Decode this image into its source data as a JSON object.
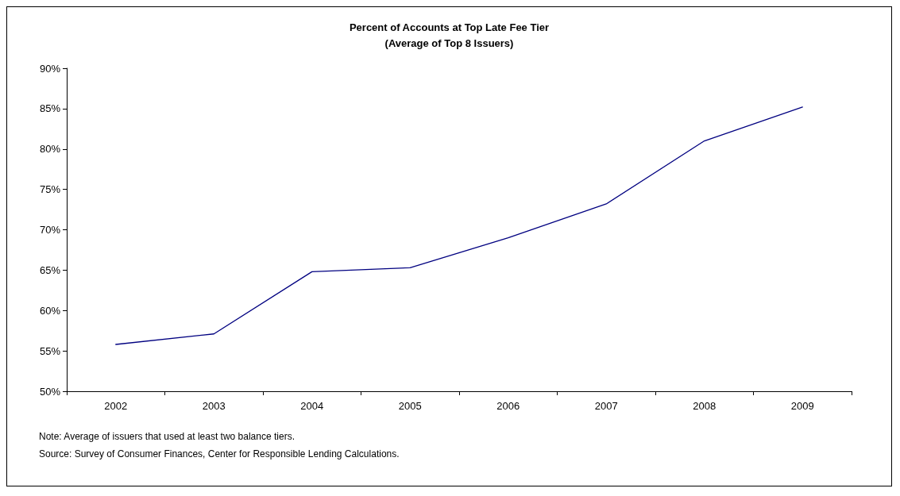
{
  "chart_data": {
    "type": "line",
    "title": "Percent of Accounts at Top Late Fee Tier\n(Average of Top 8 Issuers)",
    "categories": [
      "2002",
      "2003",
      "2004",
      "2005",
      "2006",
      "2007",
      "2008",
      "2009"
    ],
    "series": [
      {
        "color": "#000080",
        "values": [
          55.8,
          57.1,
          64.8,
          65.3,
          69.0,
          73.2,
          81.0,
          85.2
        ]
      }
    ],
    "ylim": [
      50,
      90
    ],
    "yticks": [
      {
        "value": 50,
        "label": "50%"
      },
      {
        "value": 55,
        "label": "55%"
      },
      {
        "value": 60,
        "label": "60%"
      },
      {
        "value": 65,
        "label": "65%"
      },
      {
        "value": 70,
        "label": "70%"
      },
      {
        "value": 75,
        "label": "75%"
      },
      {
        "value": 80,
        "label": "80%"
      },
      {
        "value": 85,
        "label": "85%"
      },
      {
        "value": 90,
        "label": "90%"
      }
    ],
    "grid": false,
    "marker": "none",
    "line_style": "solid",
    "annotations": [
      "Note: Average of issuers that used at least two balance tiers.",
      "Source: Survey of Consumer Finances, Center for Responsible Lending Calculations."
    ]
  }
}
